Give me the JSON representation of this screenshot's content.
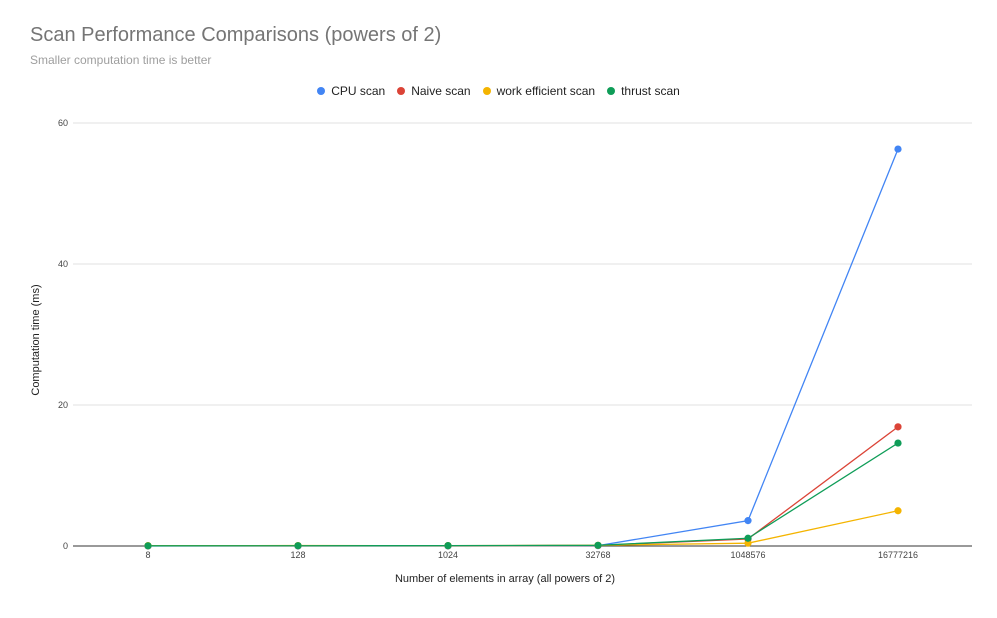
{
  "chart_data": {
    "type": "line",
    "title": "Scan Performance Comparisons (powers of 2)",
    "subtitle": "Smaller computation time is better",
    "xlabel": "Number of elements in array (all powers of 2)",
    "ylabel": "Computation time (ms)",
    "categories": [
      "8",
      "128",
      "1024",
      "32768",
      "1048576",
      "16777216"
    ],
    "ylim": [
      0,
      60
    ],
    "yticks": [
      0,
      20,
      40,
      60
    ],
    "grid": true,
    "legend_position": "top",
    "series": [
      {
        "name": "CPU scan",
        "color": "#4285f4",
        "values": [
          0,
          0,
          0,
          0.05,
          3.6,
          56.3
        ]
      },
      {
        "name": "Naive scan",
        "color": "#db4437",
        "values": [
          0.02,
          0.03,
          0.04,
          0.08,
          1.0,
          16.9
        ]
      },
      {
        "name": "work efficient scan",
        "color": "#f4b400",
        "values": [
          0.05,
          0.06,
          0.05,
          0.1,
          0.4,
          5.0
        ]
      },
      {
        "name": "thrust scan",
        "color": "#0f9d58",
        "values": [
          0.03,
          0.04,
          0.05,
          0.1,
          1.1,
          14.6
        ]
      }
    ]
  }
}
